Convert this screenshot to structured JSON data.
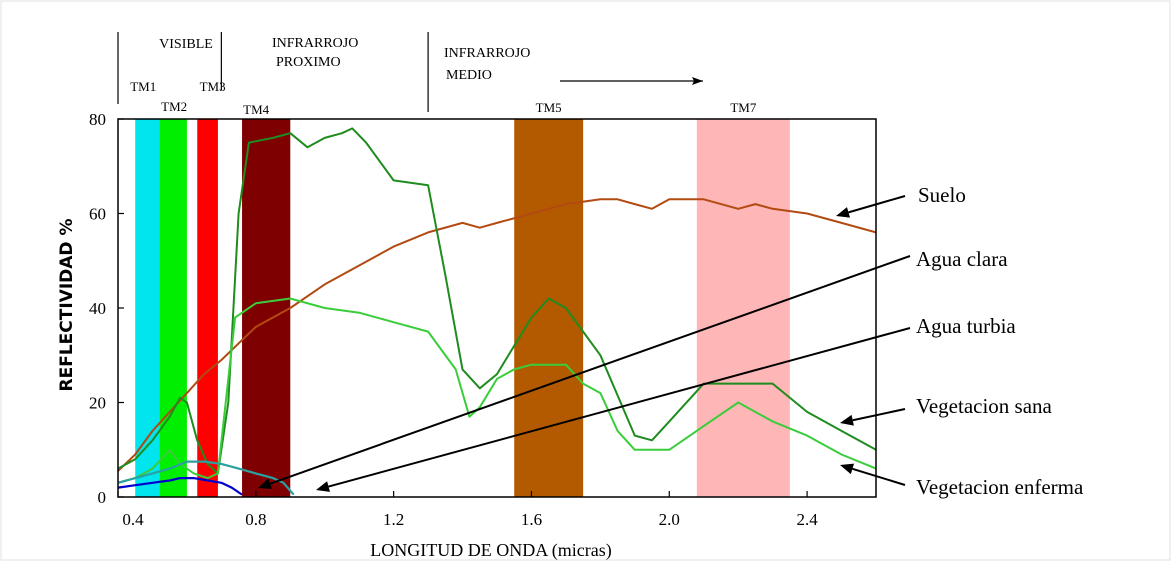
{
  "chart_data": {
    "type": "line",
    "title": "",
    "xlabel": "LONGITUD DE ONDA (micras)",
    "ylabel": "REFLECTIVIDAD %",
    "xlim": [
      0.4,
      2.6
    ],
    "ylim": [
      0,
      80
    ],
    "x_ticks": [
      0.4,
      0.8,
      1.2,
      1.6,
      2.0,
      2.4
    ],
    "x_tick_labels": [
      "0.4",
      "0.8",
      "1.2",
      "1.6",
      "2.0",
      "2.4"
    ],
    "y_ticks": [
      0,
      20,
      40,
      60,
      80
    ],
    "y_tick_labels": [
      "0",
      "20",
      "40",
      "60",
      "80"
    ],
    "grid": false,
    "regions": [
      {
        "label": "VISIBLE",
        "x_start": 0.4,
        "x_end": 0.7
      },
      {
        "label_lines": [
          "INFRARROJO",
          "PROXIMO"
        ],
        "x_start": 0.7,
        "x_end": 1.3
      },
      {
        "label_lines": [
          "INFRARROJO",
          "MEDIO"
        ],
        "x_start": 1.3,
        "x_end": 2.6
      }
    ],
    "bands": [
      {
        "name": "TM1",
        "x_start": 0.45,
        "x_end": 0.52,
        "color": "#00e5ee"
      },
      {
        "name": "TM2",
        "x_start": 0.52,
        "x_end": 0.6,
        "color": "#00ee00"
      },
      {
        "name": "TM3",
        "x_start": 0.63,
        "x_end": 0.69,
        "color": "#ff0000"
      },
      {
        "name": "TM4",
        "x_start": 0.76,
        "x_end": 0.9,
        "color": "#7f0000"
      },
      {
        "name": "TM5",
        "x_start": 1.55,
        "x_end": 1.75,
        "color": "#b35900"
      },
      {
        "name": "TM7",
        "x_start": 2.08,
        "x_end": 2.35,
        "color": "#ffb6b6"
      }
    ],
    "series": [
      {
        "name": "Suelo",
        "color": "#b24a12",
        "points": [
          [
            0.4,
            5.5
          ],
          [
            0.45,
            9
          ],
          [
            0.5,
            14
          ],
          [
            0.55,
            18
          ],
          [
            0.6,
            22
          ],
          [
            0.65,
            26
          ],
          [
            0.7,
            29
          ],
          [
            0.8,
            36
          ],
          [
            0.9,
            40
          ],
          [
            1.0,
            45
          ],
          [
            1.1,
            49
          ],
          [
            1.2,
            53
          ],
          [
            1.3,
            56
          ],
          [
            1.4,
            58
          ],
          [
            1.45,
            57
          ],
          [
            1.5,
            58
          ],
          [
            1.6,
            60
          ],
          [
            1.7,
            62
          ],
          [
            1.8,
            63
          ],
          [
            1.85,
            63
          ],
          [
            1.9,
            62
          ],
          [
            1.95,
            61
          ],
          [
            2.0,
            63
          ],
          [
            2.1,
            63
          ],
          [
            2.2,
            61
          ],
          [
            2.25,
            62
          ],
          [
            2.3,
            61
          ],
          [
            2.4,
            60
          ],
          [
            2.5,
            58
          ],
          [
            2.6,
            56
          ]
        ]
      },
      {
        "name": "Vegetacion sana",
        "color": "#1e8c1e",
        "points": [
          [
            0.4,
            6
          ],
          [
            0.45,
            8
          ],
          [
            0.5,
            12
          ],
          [
            0.55,
            17
          ],
          [
            0.58,
            21
          ],
          [
            0.6,
            20
          ],
          [
            0.63,
            12
          ],
          [
            0.66,
            7
          ],
          [
            0.69,
            5
          ],
          [
            0.72,
            20
          ],
          [
            0.75,
            60
          ],
          [
            0.78,
            75
          ],
          [
            0.85,
            76
          ],
          [
            0.9,
            77
          ],
          [
            0.95,
            74
          ],
          [
            1.0,
            76
          ],
          [
            1.05,
            77
          ],
          [
            1.08,
            78
          ],
          [
            1.12,
            75
          ],
          [
            1.2,
            67
          ],
          [
            1.3,
            66
          ],
          [
            1.35,
            47
          ],
          [
            1.4,
            27
          ],
          [
            1.45,
            23
          ],
          [
            1.5,
            26
          ],
          [
            1.55,
            32
          ],
          [
            1.6,
            38
          ],
          [
            1.65,
            42
          ],
          [
            1.7,
            40
          ],
          [
            1.8,
            30
          ],
          [
            1.9,
            13
          ],
          [
            1.95,
            12
          ],
          [
            2.0,
            16
          ],
          [
            2.1,
            24
          ],
          [
            2.2,
            24
          ],
          [
            2.3,
            24
          ],
          [
            2.4,
            18
          ],
          [
            2.5,
            14
          ],
          [
            2.6,
            10
          ]
        ]
      },
      {
        "name": "Vegetacion enferma",
        "color": "#3acd3a",
        "points": [
          [
            0.4,
            3
          ],
          [
            0.45,
            4
          ],
          [
            0.5,
            6
          ],
          [
            0.55,
            10
          ],
          [
            0.58,
            7
          ],
          [
            0.62,
            5
          ],
          [
            0.66,
            4
          ],
          [
            0.69,
            5
          ],
          [
            0.72,
            25
          ],
          [
            0.74,
            38
          ],
          [
            0.8,
            41
          ],
          [
            0.9,
            42
          ],
          [
            1.0,
            40
          ],
          [
            1.1,
            39
          ],
          [
            1.2,
            37
          ],
          [
            1.3,
            35
          ],
          [
            1.38,
            27
          ],
          [
            1.42,
            17
          ],
          [
            1.45,
            19
          ],
          [
            1.5,
            25
          ],
          [
            1.55,
            27
          ],
          [
            1.6,
            28
          ],
          [
            1.7,
            28
          ],
          [
            1.75,
            24
          ],
          [
            1.8,
            22
          ],
          [
            1.85,
            14
          ],
          [
            1.9,
            10
          ],
          [
            2.0,
            10
          ],
          [
            2.1,
            15
          ],
          [
            2.2,
            20
          ],
          [
            2.3,
            16
          ],
          [
            2.4,
            13
          ],
          [
            2.5,
            9
          ],
          [
            2.6,
            6
          ]
        ]
      },
      {
        "name": "Agua clara",
        "color": "#0000cc",
        "points": [
          [
            0.4,
            2
          ],
          [
            0.45,
            2.5
          ],
          [
            0.5,
            3
          ],
          [
            0.55,
            3.5
          ],
          [
            0.58,
            4
          ],
          [
            0.62,
            4
          ],
          [
            0.66,
            3.5
          ],
          [
            0.7,
            3
          ],
          [
            0.73,
            2
          ],
          [
            0.76,
            0.5
          ]
        ]
      },
      {
        "name": "Agua turbia",
        "color": "#2aa0a0",
        "points": [
          [
            0.4,
            3
          ],
          [
            0.45,
            4
          ],
          [
            0.5,
            5
          ],
          [
            0.55,
            6
          ],
          [
            0.6,
            7.5
          ],
          [
            0.65,
            7.5
          ],
          [
            0.7,
            7
          ],
          [
            0.75,
            6
          ],
          [
            0.8,
            5
          ],
          [
            0.85,
            4
          ],
          [
            0.88,
            3
          ],
          [
            0.91,
            0.5
          ]
        ]
      }
    ],
    "annotations": [
      {
        "text": "Suelo",
        "target_series": "Suelo"
      },
      {
        "text": "Agua clara",
        "target_series": "Agua clara"
      },
      {
        "text": "Agua turbia",
        "target_series": "Agua turbia"
      },
      {
        "text": "Vegetacion sana",
        "target_series": "Vegetacion sana"
      },
      {
        "text": "Vegetacion enferma",
        "target_series": "Vegetacion enferma"
      }
    ]
  }
}
